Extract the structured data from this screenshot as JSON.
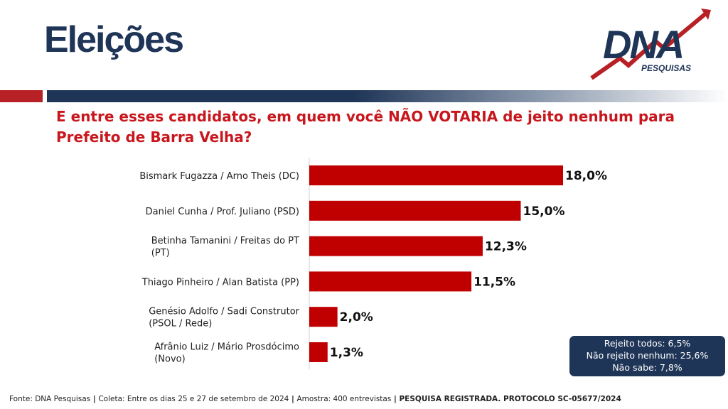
{
  "header": {
    "title": "Eleições",
    "logo_text": "DNA",
    "logo_subtext": "PESQUISAS"
  },
  "question": "E entre esses candidatos, em quem você NÃO VOTARIA de jeito nenhum para Prefeito de Barra Velha?",
  "colors": {
    "bar": "#c00000",
    "navy": "#1f3557",
    "accent_red": "#b72025",
    "question_red": "#c8161d"
  },
  "chart_data": {
    "type": "bar",
    "orientation": "horizontal",
    "categories": [
      [
        "Bismark Fugazza / Arno Theis (DC)"
      ],
      [
        "Daniel Cunha / Prof. Juliano (PSD)"
      ],
      [
        "Betinha Tamanini / Freitas do PT",
        "(PT)"
      ],
      [
        "Thiago Pinheiro / Alan Batista (PP)"
      ],
      [
        "Genésio Adolfo / Sadi Construtor",
        "(PSOL / Rede)"
      ],
      [
        "Afrânio Luiz / Mário Prosdócimo",
        "(Novo)"
      ]
    ],
    "values": [
      18.0,
      15.0,
      12.3,
      11.5,
      2.0,
      1.3
    ],
    "value_labels": [
      "18,0%",
      "15,0%",
      "12,3%",
      "11,5%",
      "2,0%",
      "1,3%"
    ],
    "unit": "%",
    "xlim": [
      0,
      20
    ],
    "grid": false,
    "legend": "none"
  },
  "notes": [
    "Rejeito todos: 6,5%",
    "Não rejeito nenhum: 25,6%",
    "Não sabe: 7,8%"
  ],
  "footer": {
    "source": "Fonte: DNA Pesquisas",
    "sep1": " | ",
    "collection": "Coleta: Entre os dias 25 e 27 de setembro de 2024",
    "sep2": " | ",
    "sample": "Amostra: 400 entrevistas",
    "sep3": " | ",
    "registered": "PESQUISA REGISTRADA. PROTOCOLO SC-05677/2024"
  }
}
